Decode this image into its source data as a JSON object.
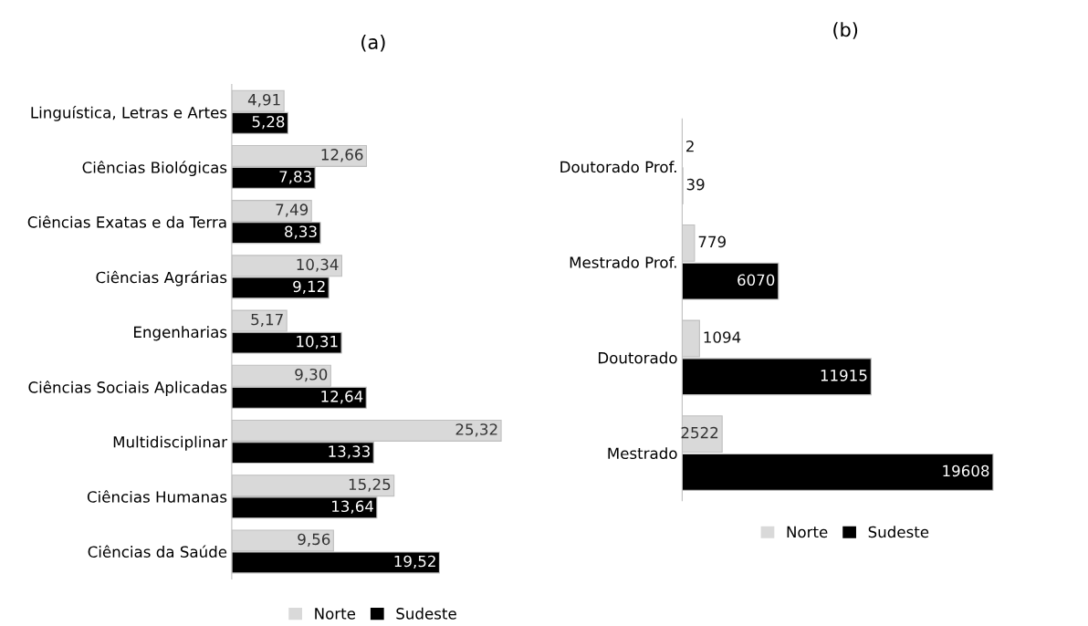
{
  "chart_data": [
    {
      "type": "bar",
      "orientation": "horizontal",
      "title": "(a)",
      "categories": [
        "Linguística, Letras e Artes",
        "Ciências Biológicas",
        "Ciências Exatas e da Terra",
        "Ciências Agrárias",
        "Engenharias",
        "Ciências Sociais Aplicadas",
        "Multidisciplinar",
        "Ciências Humanas",
        "Ciências da Saúde"
      ],
      "series": [
        {
          "name": "Norte",
          "color": "#d9d9d9",
          "values": [
            4.91,
            12.66,
            7.49,
            10.34,
            5.17,
            9.3,
            25.32,
            15.25,
            9.56
          ],
          "value_labels": [
            "4,91",
            "12,66",
            "7,49",
            "10,34",
            "5,17",
            "9,30",
            "25,32",
            "15,25",
            "9,56"
          ]
        },
        {
          "name": "Sudeste",
          "color": "#000000",
          "values": [
            5.28,
            7.83,
            8.33,
            9.12,
            10.31,
            12.64,
            13.33,
            13.64,
            19.52
          ],
          "value_labels": [
            "5,28",
            "7,83",
            "8,33",
            "9,12",
            "10,31",
            "12,64",
            "13,33",
            "13,64",
            "19,52"
          ]
        }
      ],
      "legend": "bottom",
      "tick_labels": "y"
    },
    {
      "type": "bar",
      "orientation": "horizontal",
      "title": "(b)",
      "categories": [
        "Doutorado Prof.",
        "Mestrado Prof.",
        "Doutorado",
        "Mestrado"
      ],
      "series": [
        {
          "name": "Norte",
          "color": "#d9d9d9",
          "values": [
            2,
            779,
            1094,
            2522
          ]
        },
        {
          "name": "Sudeste",
          "color": "#000000",
          "values": [
            39,
            6070,
            11915,
            19608
          ]
        }
      ],
      "data_labels": true,
      "legend": "bottom",
      "tick_labels": "y"
    }
  ]
}
